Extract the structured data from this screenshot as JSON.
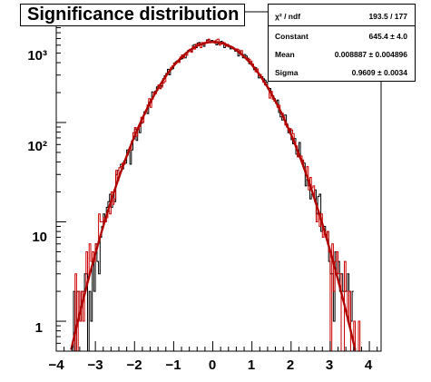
{
  "title": "Significance distribution",
  "stats_box": {
    "rows": [
      {
        "label": "χ² / ndf",
        "value": "193.5 / 177"
      },
      {
        "label": "Constant",
        "value": "645.4 ± 4.0"
      },
      {
        "label": "Mean",
        "value": "0.008887 ± 0.004896"
      },
      {
        "label": "Sigma",
        "value": "0.9609 ± 0.0034"
      }
    ]
  },
  "chart_data": {
    "type": "line",
    "title": "Significance distribution",
    "xlabel": "",
    "ylabel": "",
    "x_range": [
      -4,
      4.3
    ],
    "y_range": [
      0.5,
      1300
    ],
    "y_scale": "log",
    "grid": false,
    "x_ticks": [
      "−4",
      "−3",
      "−2",
      "−1",
      "0",
      "1",
      "2",
      "3",
      "4"
    ],
    "y_ticks": [
      "1",
      "10",
      "10²",
      "10³"
    ],
    "fit": {
      "function": "gaus",
      "constant": 645.4,
      "mean": 0.008887,
      "sigma": 0.9609
    },
    "series": [
      {
        "color": "#000000",
        "kind": "histogram",
        "bin_width": 0.04
      },
      {
        "color": "#cc0000",
        "kind": "histogram",
        "bin_width": 0.04
      },
      {
        "color": "#b00000",
        "kind": "fit-curve"
      }
    ]
  }
}
